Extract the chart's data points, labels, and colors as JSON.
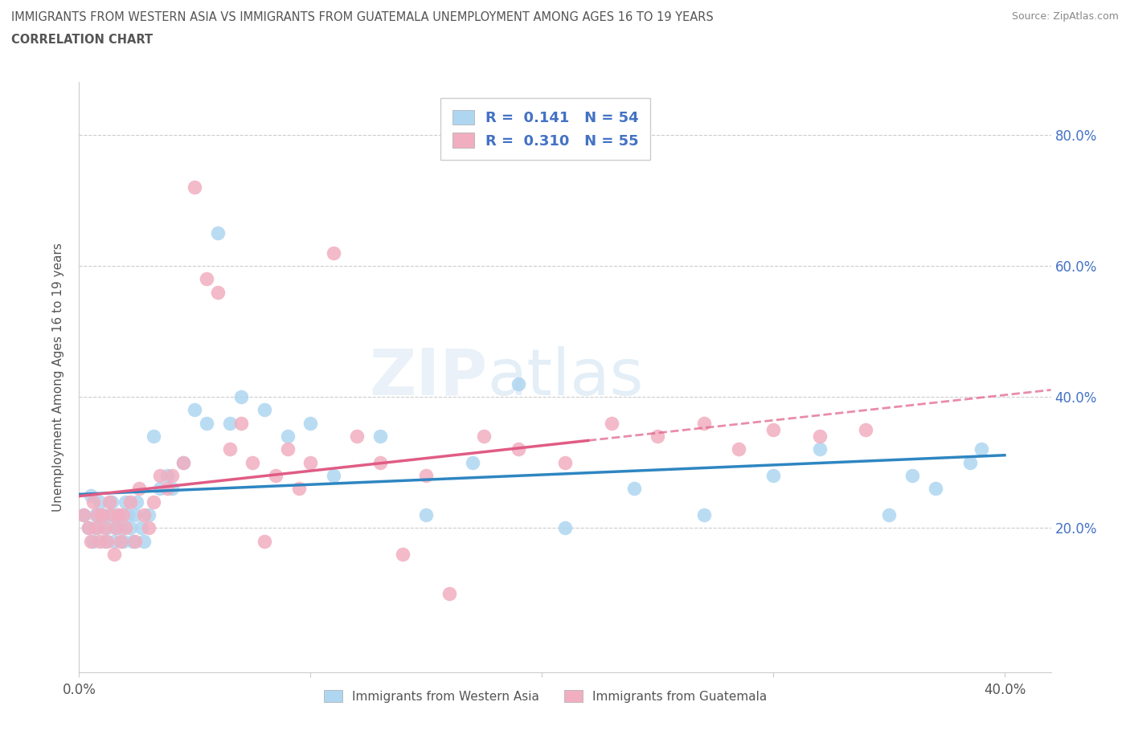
{
  "title_line1": "IMMIGRANTS FROM WESTERN ASIA VS IMMIGRANTS FROM GUATEMALA UNEMPLOYMENT AMONG AGES 16 TO 19 YEARS",
  "title_line2": "CORRELATION CHART",
  "source": "Source: ZipAtlas.com",
  "ylabel": "Unemployment Among Ages 16 to 19 years",
  "xlim": [
    0.0,
    0.42
  ],
  "ylim": [
    -0.02,
    0.88
  ],
  "legend_R1": "0.141",
  "legend_N1": "54",
  "legend_R2": "0.310",
  "legend_N2": "55",
  "series1_color": "#aed6f1",
  "series2_color": "#f1aec0",
  "trend1_color": "#2e86c1",
  "trend2_color": "#e05c85",
  "watermark_zip": "ZIP",
  "watermark_atlas": "atlas",
  "background_color": "#ffffff",
  "grid_color": "#cccccc",
  "label1": "Immigrants from Western Asia",
  "label2": "Immigrants from Guatemala",
  "series1_x": [
    0.002,
    0.004,
    0.005,
    0.006,
    0.007,
    0.008,
    0.009,
    0.01,
    0.011,
    0.012,
    0.013,
    0.014,
    0.015,
    0.016,
    0.017,
    0.018,
    0.019,
    0.02,
    0.021,
    0.022,
    0.023,
    0.024,
    0.025,
    0.027,
    0.028,
    0.03,
    0.032,
    0.035,
    0.038,
    0.04,
    0.045,
    0.05,
    0.055,
    0.06,
    0.065,
    0.07,
    0.08,
    0.09,
    0.1,
    0.11,
    0.13,
    0.15,
    0.17,
    0.19,
    0.21,
    0.24,
    0.27,
    0.3,
    0.32,
    0.35,
    0.36,
    0.37,
    0.385,
    0.39
  ],
  "series1_y": [
    0.22,
    0.2,
    0.25,
    0.18,
    0.22,
    0.2,
    0.24,
    0.22,
    0.18,
    0.2,
    0.22,
    0.24,
    0.18,
    0.2,
    0.22,
    0.2,
    0.18,
    0.24,
    0.22,
    0.2,
    0.18,
    0.22,
    0.24,
    0.2,
    0.18,
    0.22,
    0.34,
    0.26,
    0.28,
    0.26,
    0.3,
    0.38,
    0.36,
    0.65,
    0.36,
    0.4,
    0.38,
    0.34,
    0.36,
    0.28,
    0.34,
    0.22,
    0.3,
    0.42,
    0.2,
    0.26,
    0.22,
    0.28,
    0.32,
    0.22,
    0.28,
    0.26,
    0.3,
    0.32
  ],
  "series2_x": [
    0.002,
    0.004,
    0.005,
    0.006,
    0.007,
    0.008,
    0.009,
    0.01,
    0.011,
    0.012,
    0.013,
    0.014,
    0.015,
    0.016,
    0.017,
    0.018,
    0.019,
    0.02,
    0.022,
    0.024,
    0.026,
    0.028,
    0.03,
    0.032,
    0.035,
    0.038,
    0.04,
    0.045,
    0.05,
    0.055,
    0.06,
    0.065,
    0.07,
    0.075,
    0.08,
    0.085,
    0.09,
    0.095,
    0.1,
    0.11,
    0.12,
    0.13,
    0.14,
    0.15,
    0.16,
    0.175,
    0.19,
    0.21,
    0.23,
    0.25,
    0.27,
    0.285,
    0.3,
    0.32,
    0.34
  ],
  "series2_y": [
    0.22,
    0.2,
    0.18,
    0.24,
    0.2,
    0.22,
    0.18,
    0.22,
    0.2,
    0.18,
    0.24,
    0.22,
    0.16,
    0.2,
    0.22,
    0.18,
    0.22,
    0.2,
    0.24,
    0.18,
    0.26,
    0.22,
    0.2,
    0.24,
    0.28,
    0.26,
    0.28,
    0.3,
    0.72,
    0.58,
    0.56,
    0.32,
    0.36,
    0.3,
    0.18,
    0.28,
    0.32,
    0.26,
    0.3,
    0.62,
    0.34,
    0.3,
    0.16,
    0.28,
    0.1,
    0.34,
    0.32,
    0.3,
    0.36,
    0.34,
    0.36,
    0.32,
    0.35,
    0.34,
    0.35
  ],
  "trend1_R": 0.141,
  "trend2_R": 0.31,
  "trend_solid_xlim": [
    0.002,
    0.22
  ],
  "trend_dashed_xlim": [
    0.22,
    0.42
  ]
}
